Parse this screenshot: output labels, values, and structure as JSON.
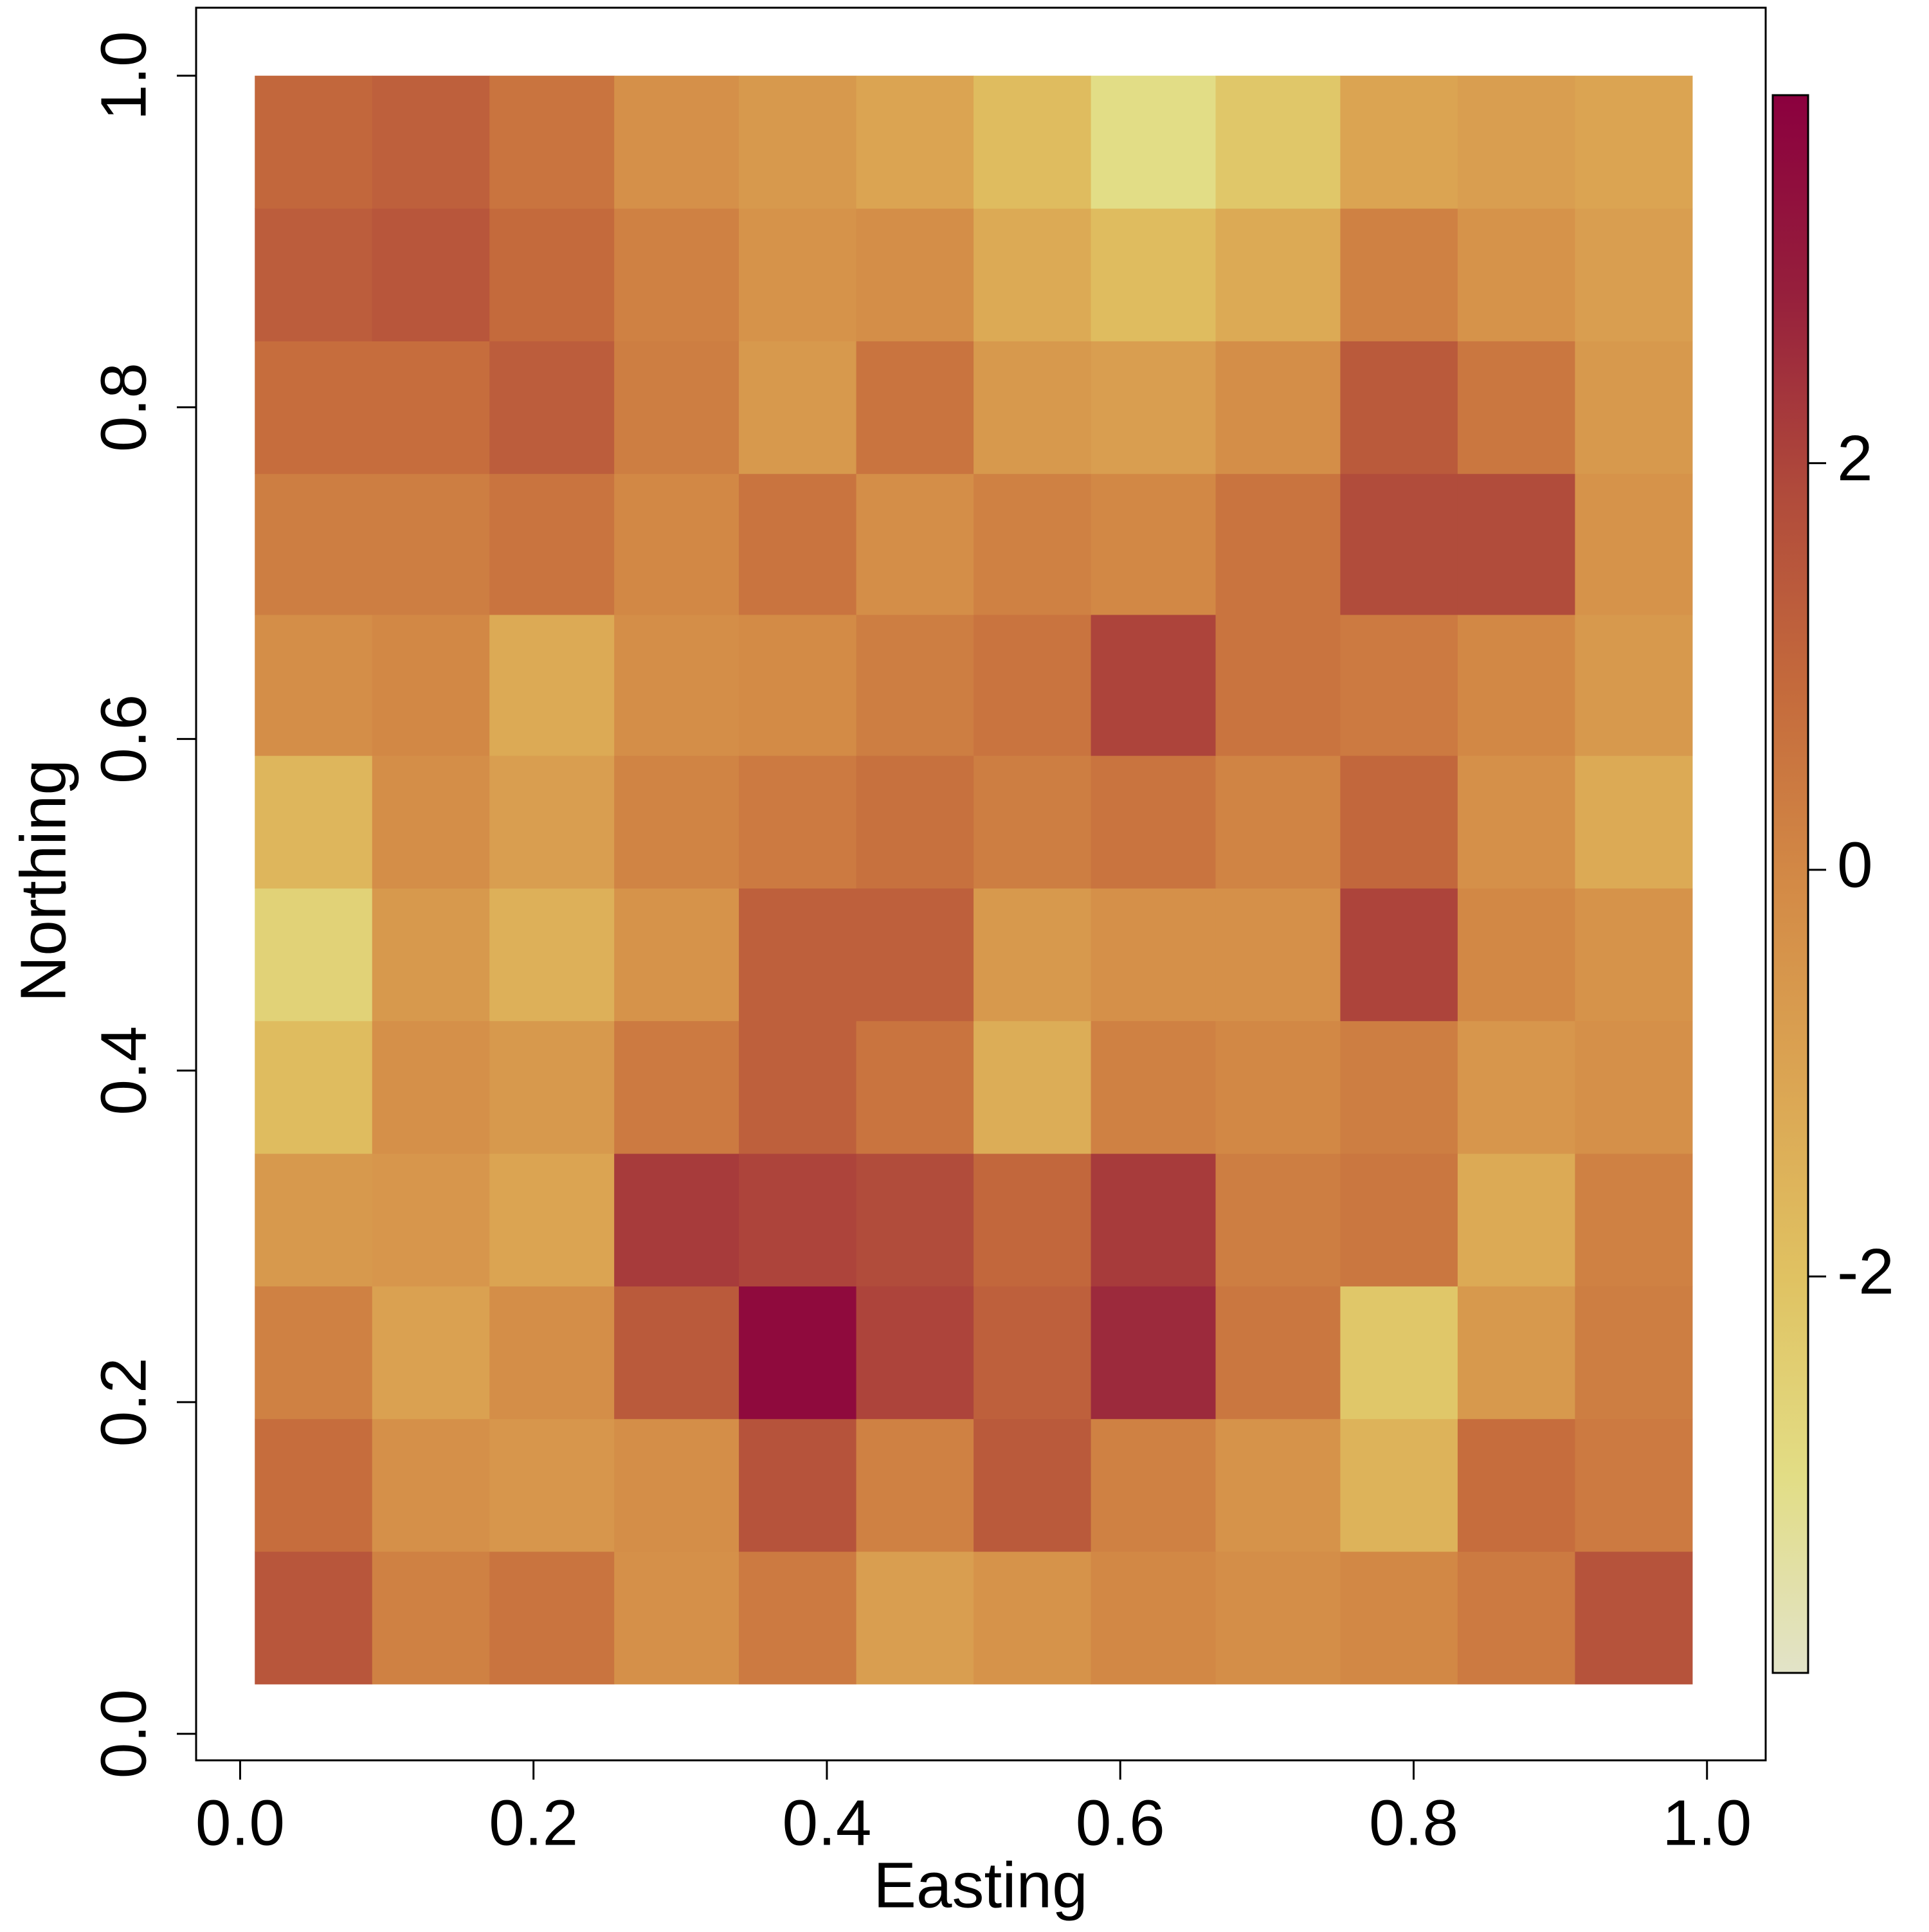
{
  "chart_data": {
    "type": "heatmap",
    "xlabel": "Easting",
    "ylabel": "Northing",
    "x": [
      0.05,
      0.13,
      0.21,
      0.3,
      0.38,
      0.46,
      0.54,
      0.62,
      0.71,
      0.79,
      0.87,
      0.95
    ],
    "y": [
      0.07,
      0.15,
      0.23,
      0.31,
      0.39,
      0.47,
      0.55,
      0.63,
      0.72,
      0.8,
      0.88,
      0.96
    ],
    "z": [
      [
        1.5,
        0.2,
        0.6,
        -0.3,
        0.4,
        -0.8,
        -0.4,
        0.0,
        -0.2,
        0.0,
        0.4,
        1.6
      ],
      [
        0.8,
        -0.3,
        -0.5,
        -0.2,
        1.6,
        0.2,
        1.4,
        0.2,
        -0.4,
        -1.5,
        0.8,
        0.4
      ],
      [
        0.2,
        -0.9,
        -0.2,
        1.4,
        3.5,
        2.0,
        1.2,
        2.6,
        0.5,
        -2.2,
        -0.6,
        0.3
      ],
      [
        -0.6,
        -0.5,
        -1.0,
        2.2,
        2.0,
        1.8,
        1.0,
        2.2,
        0.3,
        0.5,
        -1.2,
        0.2
      ],
      [
        -1.8,
        -0.3,
        -0.6,
        0.4,
        1.2,
        0.6,
        -1.3,
        0.2,
        0.0,
        0.3,
        -0.5,
        -0.3
      ],
      [
        -2.6,
        -0.6,
        -1.4,
        -0.4,
        1.2,
        1.2,
        -0.6,
        -0.3,
        -0.3,
        2.0,
        0.0,
        -0.4
      ],
      [
        -1.6,
        -0.2,
        -0.8,
        0.1,
        0.4,
        0.7,
        0.3,
        0.6,
        0.1,
        1.0,
        -0.3,
        -1.2
      ],
      [
        -0.2,
        0.0,
        -1.2,
        -0.2,
        -0.1,
        0.3,
        0.6,
        2.0,
        0.6,
        0.4,
        0.0,
        -0.6
      ],
      [
        0.3,
        0.3,
        0.6,
        0.0,
        0.6,
        -0.2,
        0.2,
        0.0,
        0.6,
        1.8,
        1.8,
        -0.4
      ],
      [
        0.8,
        0.8,
        1.3,
        0.3,
        -0.6,
        0.6,
        -0.6,
        -0.8,
        -0.2,
        1.4,
        0.5,
        -0.6
      ],
      [
        1.3,
        1.5,
        0.9,
        0.2,
        -0.4,
        -0.2,
        -1.2,
        -1.8,
        -1.2,
        0.2,
        -0.4,
        -0.8
      ],
      [
        1.0,
        1.2,
        0.6,
        -0.3,
        -0.6,
        -1.0,
        -1.8,
        -3.0,
        -2.2,
        -1.0,
        -0.8,
        -1.0
      ]
    ],
    "xlim": [
      -0.03,
      1.04
    ],
    "ylim": [
      -0.016,
      1.041
    ],
    "xticks": [
      {
        "value": 0,
        "label": "0.0"
      },
      0.2,
      0.4,
      0.6,
      0.8,
      {
        "value": 1,
        "label": "1.0"
      }
    ],
    "yticks": [
      {
        "value": 0,
        "label": "0.0"
      },
      0.2,
      0.4,
      0.6,
      0.8,
      {
        "value": 1,
        "label": "1.0"
      }
    ],
    "zlim": [
      -3.95,
      3.81
    ],
    "zticks": [
      -2,
      0,
      2
    ],
    "colors": [
      "#e2e3c8",
      "#e2dd85",
      "#e0c262",
      "#dba553",
      "#d38a46",
      "#c46a3c",
      "#b04a3b",
      "#961f3c",
      "#8b003e"
    ]
  }
}
